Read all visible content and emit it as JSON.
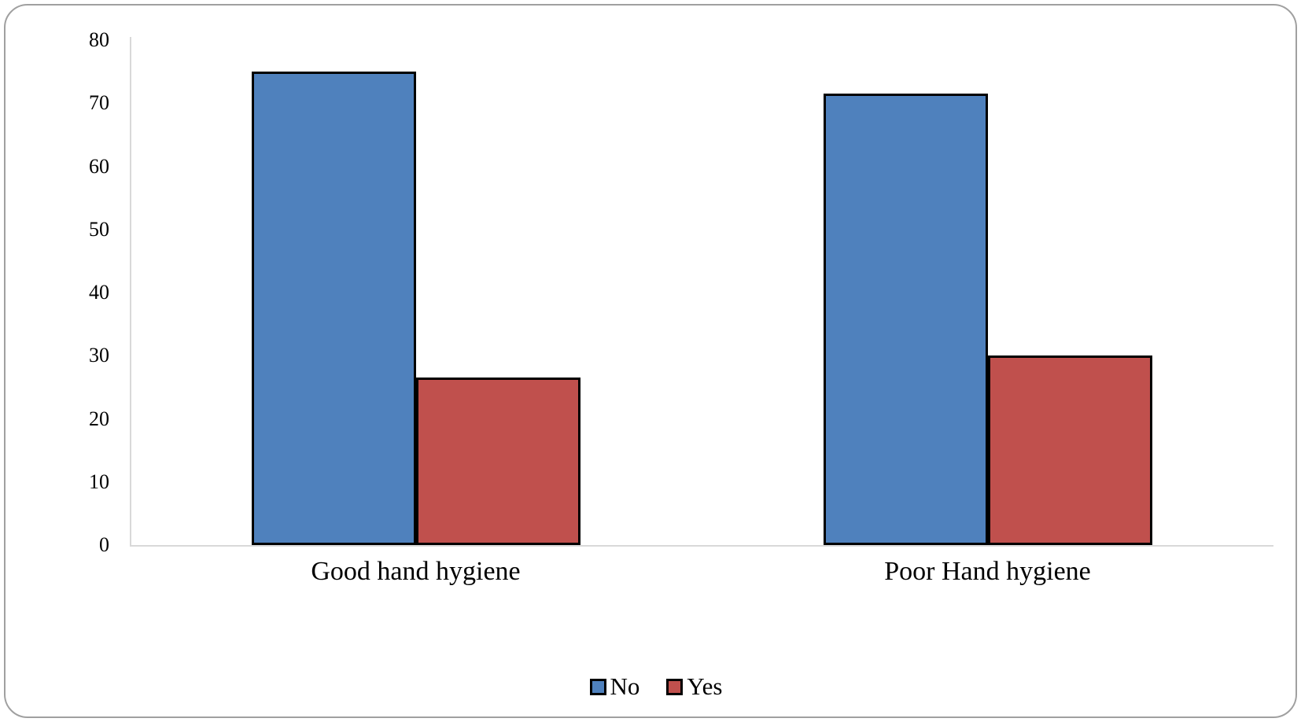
{
  "figure": {
    "background": "#ffffff",
    "border_color": "#a0a0a0"
  },
  "chart_data": {
    "type": "bar",
    "title": "",
    "xlabel": "",
    "ylabel": "",
    "categories": [
      "Good hand hygiene",
      "Poor Hand hygiene"
    ],
    "series": [
      {
        "name": "No",
        "color": "#4F81BD",
        "values": [
          75,
          71.5
        ]
      },
      {
        "name": "Yes",
        "color": "#C0504D",
        "values": [
          26.5,
          30
        ]
      }
    ],
    "bar_outline_color": "#000000",
    "axis_line_color": "#d9d9d9",
    "ylim": [
      0,
      80
    ],
    "yticks": [
      0,
      10,
      20,
      30,
      40,
      50,
      60,
      70,
      80
    ],
    "grid": false,
    "legend_position": "bottom"
  }
}
